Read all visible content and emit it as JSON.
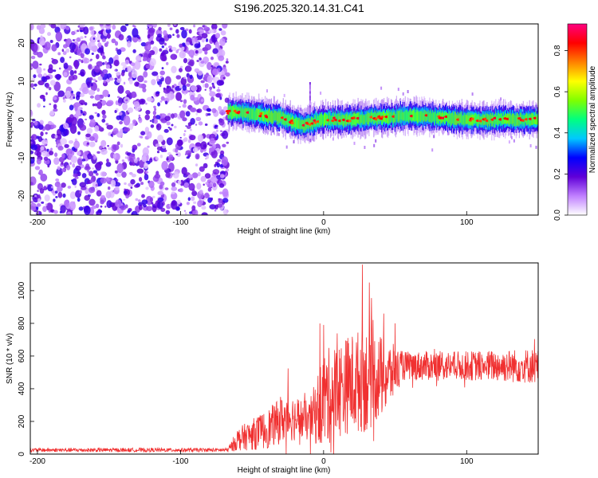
{
  "title": "S196.2025.320.14.31.C41",
  "chart_data": [
    {
      "type": "heatmap",
      "xlabel": "Height of straight line (km)",
      "ylabel": "Frequency (Hz)",
      "xlim": [
        -205,
        150
      ],
      "ylim": [
        -25,
        25
      ],
      "x_ticks": [
        -200,
        -100,
        0,
        100
      ],
      "y_ticks": [
        -20,
        -10,
        0,
        10,
        20
      ],
      "colorbar": {
        "label": "Normalized spectral amplitude",
        "range": [
          0,
          0.93
        ],
        "ticks": [
          0.0,
          0.2,
          0.4,
          0.6,
          0.8
        ],
        "colormap": [
          "#ffffff",
          "#c080ff",
          "#6000d8",
          "#0000ff",
          "#00c8ff",
          "#00ff80",
          "#80ff00",
          "#ffff00",
          "#ff8000",
          "#ff0000",
          "#ff0080"
        ]
      },
      "noise_region_x": [
        -205,
        -67
      ],
      "signal_band_center_hz": [
        {
          "x": -67,
          "f": 2
        },
        {
          "x": -50,
          "f": 1.5
        },
        {
          "x": -30,
          "f": 0.5
        },
        {
          "x": -15,
          "f": -1.5
        },
        {
          "x": 0,
          "f": 0
        },
        {
          "x": 20,
          "f": 0
        },
        {
          "x": 40,
          "f": 0.5
        },
        {
          "x": 60,
          "f": 1
        },
        {
          "x": 80,
          "f": 0.5
        },
        {
          "x": 100,
          "f": 0
        },
        {
          "x": 120,
          "f": 0
        },
        {
          "x": 150,
          "f": 0
        }
      ]
    },
    {
      "type": "line",
      "xlabel": "Height of straight line (km)",
      "ylabel": "SNR (10 * v/v)",
      "xlim": [
        -205,
        150
      ],
      "ylim": [
        0,
        1170
      ],
      "x_ticks": [
        -200,
        -100,
        0,
        100
      ],
      "y_ticks": [
        0,
        200,
        400,
        600,
        800,
        1000
      ],
      "series": [
        {
          "name": "SNR",
          "color": "#f03030",
          "envelope": [
            {
              "x": -205,
              "mean": 25,
              "spread": 12
            },
            {
              "x": -67,
              "mean": 25,
              "spread": 12
            },
            {
              "x": -60,
              "mean": 90,
              "spread": 70
            },
            {
              "x": -40,
              "mean": 150,
              "spread": 120
            },
            {
              "x": -25,
              "mean": 230,
              "spread": 150
            },
            {
              "x": -10,
              "mean": 200,
              "spread": 120
            },
            {
              "x": 0,
              "mean": 330,
              "spread": 300
            },
            {
              "x": 15,
              "mean": 420,
              "spread": 300
            },
            {
              "x": 30,
              "mean": 460,
              "spread": 330
            },
            {
              "x": 45,
              "mean": 480,
              "spread": 220
            },
            {
              "x": 55,
              "mean": 540,
              "spread": 90
            },
            {
              "x": 100,
              "mean": 540,
              "spread": 90
            },
            {
              "x": 150,
              "mean": 540,
              "spread": 110
            }
          ],
          "peaks": [
            {
              "x": 0,
              "y": 790
            },
            {
              "x": 27,
              "y": 1160
            },
            {
              "x": 32,
              "y": 1050
            },
            {
              "x": 42,
              "y": 860
            },
            {
              "x": 50,
              "y": 800
            },
            {
              "x": -30,
              "y": 350
            },
            {
              "x": 5,
              "y": 10
            },
            {
              "x": 35,
              "y": 80
            }
          ]
        }
      ]
    }
  ]
}
